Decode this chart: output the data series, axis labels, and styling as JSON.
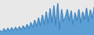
{
  "values": [
    10,
    6,
    14,
    7,
    15,
    8,
    16,
    9,
    17,
    10,
    18,
    11,
    20,
    12,
    23,
    14,
    27,
    16,
    32,
    18,
    37,
    20,
    43,
    22,
    50,
    24,
    57,
    26,
    63,
    20,
    68,
    10,
    55,
    28,
    40,
    55,
    30,
    52,
    22,
    48,
    30,
    55,
    25,
    50,
    32,
    58,
    28,
    54,
    35,
    60
  ],
  "fill_color": "#5b9fd4",
  "line_color": "#3a7ab5",
  "background_color": "#e8e8e8",
  "ylim_min": 0,
  "ylim_max": 75
}
